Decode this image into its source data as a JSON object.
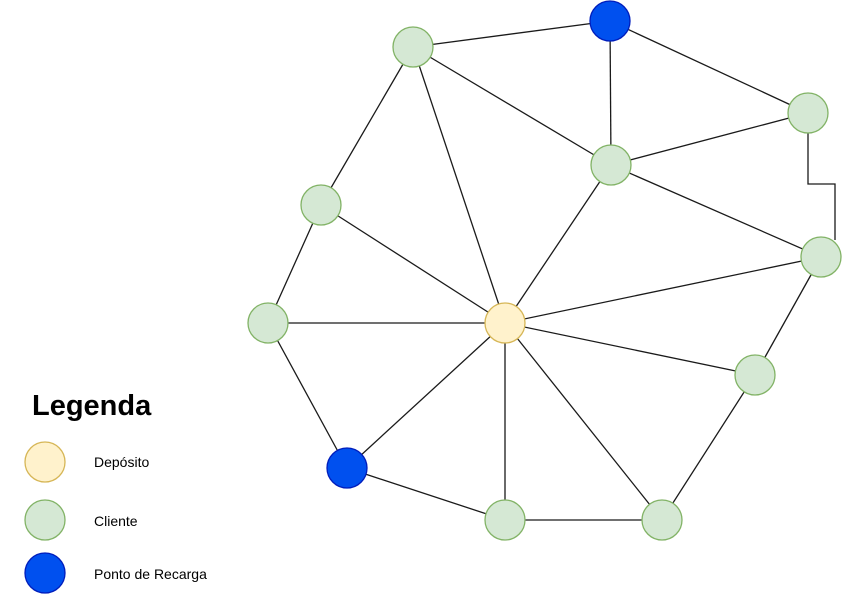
{
  "legend": {
    "title": "Legenda",
    "items": [
      {
        "label": "Depósito",
        "fill": "#fff2cc",
        "stroke": "#d6b656"
      },
      {
        "label": "Cliente",
        "fill": "#d5e8d4",
        "stroke": "#82b366"
      },
      {
        "label": "Ponto de Recarga",
        "fill": "#0050ef",
        "stroke": "#001dbc"
      }
    ]
  },
  "colors": {
    "edge": "#1a1a1a",
    "deposito_fill": "#fff2cc",
    "deposito_stroke": "#d6b656",
    "cliente_fill": "#d5e8d4",
    "cliente_stroke": "#82b366",
    "recarga_fill": "#0050ef",
    "recarga_stroke": "#001dbc"
  },
  "graph": {
    "nodes": [
      {
        "id": "deposito",
        "type": "deposito"
      },
      {
        "id": "recarga-top",
        "type": "recarga"
      },
      {
        "id": "recarga-bottom",
        "type": "recarga"
      },
      {
        "id": "cliente-1",
        "type": "cliente"
      },
      {
        "id": "cliente-2",
        "type": "cliente"
      },
      {
        "id": "cliente-3",
        "type": "cliente"
      },
      {
        "id": "cliente-4",
        "type": "cliente"
      },
      {
        "id": "cliente-5",
        "type": "cliente"
      },
      {
        "id": "cliente-6",
        "type": "cliente"
      },
      {
        "id": "cliente-7",
        "type": "cliente"
      },
      {
        "id": "cliente-8",
        "type": "cliente"
      },
      {
        "id": "cliente-9",
        "type": "cliente"
      },
      {
        "id": "cliente-10",
        "type": "cliente"
      }
    ],
    "edges": [
      [
        "cliente-1",
        "recarga-top"
      ],
      [
        "cliente-1",
        "cliente-4"
      ],
      [
        "cliente-1",
        "deposito"
      ],
      [
        "cliente-1",
        "cliente-2"
      ],
      [
        "recarga-top",
        "cliente-4"
      ],
      [
        "recarga-top",
        "cliente-3"
      ],
      [
        "cliente-3",
        "cliente-4"
      ],
      [
        "cliente-3",
        "cliente-5"
      ],
      [
        "cliente-4",
        "cliente-5"
      ],
      [
        "cliente-4",
        "deposito"
      ],
      [
        "cliente-2",
        "deposito"
      ],
      [
        "cliente-2",
        "cliente-6"
      ],
      [
        "cliente-6",
        "deposito"
      ],
      [
        "cliente-6",
        "recarga-bottom"
      ],
      [
        "deposito",
        "cliente-5"
      ],
      [
        "deposito",
        "cliente-7"
      ],
      [
        "deposito",
        "cliente-8"
      ],
      [
        "deposito",
        "cliente-9"
      ],
      [
        "deposito",
        "recarga-bottom"
      ],
      [
        "cliente-5",
        "cliente-7"
      ],
      [
        "cliente-7",
        "cliente-8"
      ],
      [
        "cliente-8",
        "cliente-9"
      ],
      [
        "cliente-9",
        "recarga-bottom"
      ]
    ]
  }
}
